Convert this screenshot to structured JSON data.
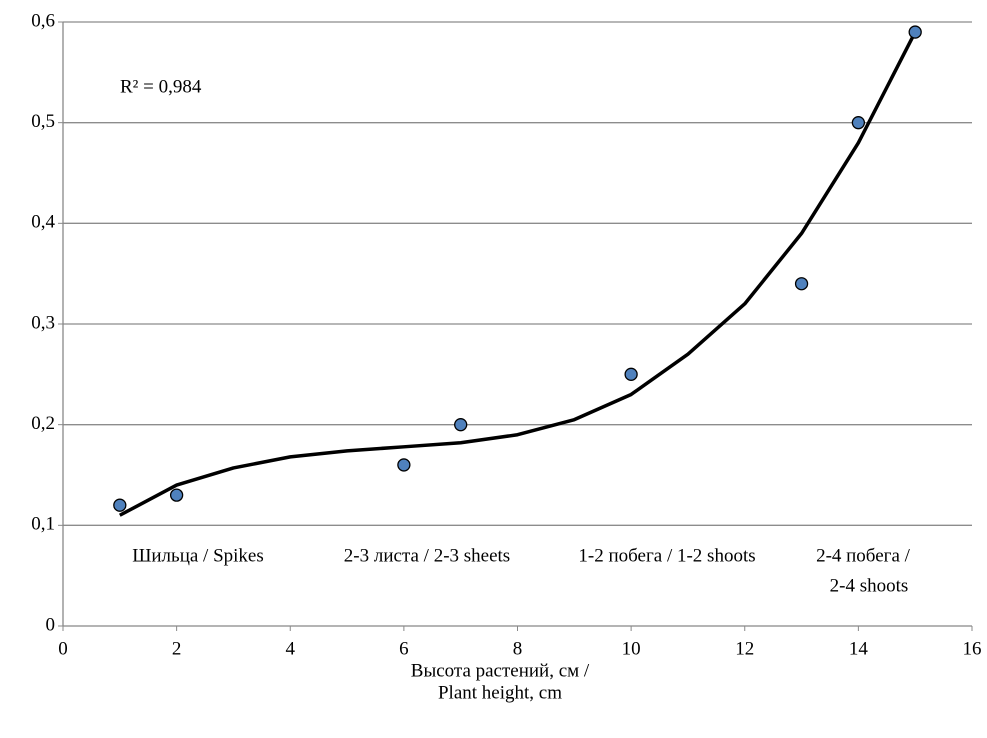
{
  "chart_data": {
    "type": "scatter",
    "x_label": [
      "Высота растений, см /",
      "Plant height, cm"
    ],
    "annotation": "R² = 0,984",
    "stage_labels": [
      [
        "Шильца / Spikes"
      ],
      [
        "2-3 листа / 2-3 sheets"
      ],
      [
        "1-2 побега / 1-2 shoots"
      ],
      [
        "2-4 побега /",
        "2-4 shoots"
      ]
    ],
    "series": [
      {
        "color": "#4f81bd",
        "x": [
          1,
          2,
          6,
          7,
          10,
          13,
          14,
          15
        ],
        "values": [
          0.12,
          0.13,
          0.16,
          0.2,
          0.25,
          0.34,
          0.5,
          0.59
        ]
      }
    ],
    "trendline": {
      "color": "#000000",
      "x": [
        1,
        2,
        3,
        4,
        5,
        6,
        7,
        8,
        9,
        10,
        11,
        12,
        13,
        14,
        15
      ],
      "values": [
        0.11,
        0.14,
        0.157,
        0.168,
        0.174,
        0.178,
        0.182,
        0.19,
        0.205,
        0.23,
        0.27,
        0.32,
        0.39,
        0.48,
        0.59
      ]
    },
    "xlim": [
      0,
      16
    ],
    "xticks": [
      0,
      2,
      4,
      6,
      8,
      10,
      12,
      14,
      16
    ],
    "ylim": [
      0,
      0.6
    ],
    "yticks": [
      0,
      {
        "value": 0.1,
        "label": "0,1"
      },
      {
        "value": 0.2,
        "label": "0,2"
      },
      {
        "value": 0.3,
        "label": "0,3"
      },
      {
        "value": 0.4,
        "label": "0,4"
      },
      {
        "value": 0.5,
        "label": "0,5"
      },
      {
        "value": 0.6,
        "label": "0,6"
      }
    ],
    "grid": true
  }
}
